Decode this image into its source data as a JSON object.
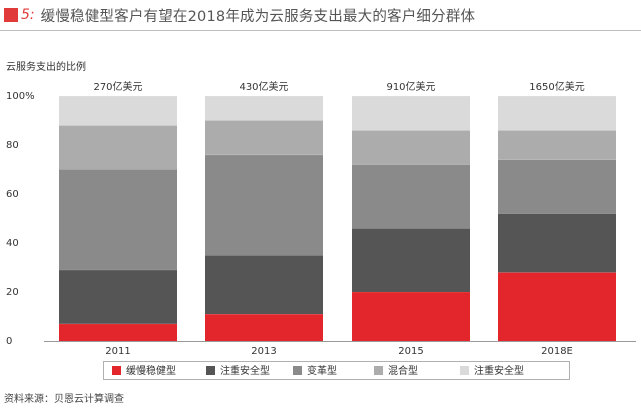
{
  "header": {
    "fig_label": "图",
    "fig_number": "5:",
    "title": "缓慢稳健型客户有望在2018年成为云服务支出最大的客户细分群体"
  },
  "source": "资料来源：贝恩云计算调查",
  "colors": {
    "accent": "#e03a3a",
    "series": [
      "#e3262b",
      "#555555",
      "#8a8a8a",
      "#acacac",
      "#dadada"
    ]
  },
  "chart_data": {
    "type": "bar",
    "stacked": true,
    "ylabel": "云服务支出的比例",
    "ylim": [
      0,
      100
    ],
    "yticks": [
      "0",
      "20",
      "40",
      "60",
      "80",
      "100%"
    ],
    "categories": [
      "2011",
      "2013",
      "2015",
      "2018E"
    ],
    "totals": [
      "270亿美元",
      "430亿美元",
      "910亿美元",
      "1650亿美元"
    ],
    "series": [
      {
        "name": "缓慢稳健型",
        "values": [
          7,
          11,
          20,
          28
        ]
      },
      {
        "name": "注重安全型",
        "values": [
          22,
          24,
          26,
          24
        ]
      },
      {
        "name": "变革型",
        "values": [
          41,
          41,
          26,
          22
        ]
      },
      {
        "name": "混合型",
        "values": [
          18,
          14,
          14,
          12
        ]
      },
      {
        "name": "注重安全型",
        "values": [
          12,
          10,
          14,
          14
        ]
      }
    ],
    "legend_position": "bottom",
    "grid": false
  }
}
